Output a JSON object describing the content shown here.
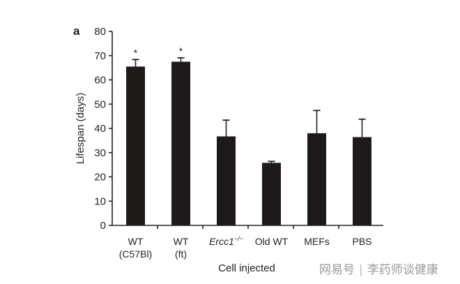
{
  "chart_data": {
    "type": "bar",
    "panel_label": "a",
    "categories": [
      {
        "label": "WT",
        "sub": "(C57Bl)"
      },
      {
        "label": "WT",
        "sub": "(ft)"
      },
      {
        "label": "Ercc1",
        "sup": "−/−",
        "italic": true
      },
      {
        "label": "Old WT"
      },
      {
        "label": "MEFs"
      },
      {
        "label": "PBS"
      }
    ],
    "values": [
      65.5,
      67.5,
      36.7,
      25.8,
      38.0,
      36.4
    ],
    "error_upper": [
      68.4,
      69.1,
      43.4,
      26.4,
      47.4,
      43.8
    ],
    "annotations": [
      "*",
      "*",
      "",
      "",
      "",
      ""
    ],
    "xlabel": "Cell injected",
    "ylabel": "Lifespan (days)",
    "ylim": [
      0,
      80
    ],
    "yticks": [
      0,
      10,
      20,
      30,
      40,
      50,
      60,
      70,
      80
    ],
    "grid": false,
    "bar_color": "#1e1a1a"
  },
  "watermark": {
    "brand": "网易号",
    "separator": "|",
    "account": "李药师谈健康"
  }
}
